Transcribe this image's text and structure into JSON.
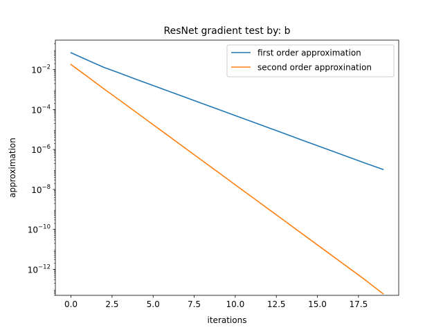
{
  "chart_data": {
    "type": "line",
    "title": "ResNet gradient test by: b",
    "xlabel": "iterations",
    "ylabel": "approximation",
    "yscale": "log",
    "xlim": [
      -0.95,
      19.95
    ],
    "ylim": [
      5e-14,
      0.3
    ],
    "xticks": [
      0.0,
      2.5,
      5.0,
      7.5,
      10.0,
      12.5,
      15.0,
      17.5
    ],
    "xtick_labels": [
      "0.0",
      "2.5",
      "5.0",
      "7.5",
      "10.0",
      "12.5",
      "15.0",
      "17.5"
    ],
    "yticks": [
      1e-12,
      1e-10,
      1e-08,
      1e-06,
      0.0001,
      0.01
    ],
    "ytick_bases": [
      "10",
      "10",
      "10",
      "10",
      "10",
      "10"
    ],
    "ytick_exponents": [
      "−12",
      "−10",
      "−8",
      "−6",
      "−4",
      "−2"
    ],
    "grid": false,
    "legend_position": "top-right",
    "x": [
      0,
      1,
      2,
      3,
      4,
      5,
      6,
      7,
      8,
      9,
      10,
      11,
      12,
      13,
      14,
      15,
      16,
      17,
      18,
      19
    ],
    "series": [
      {
        "name": "first order approximation",
        "color": "#1f77b4",
        "values": [
          0.07,
          0.03,
          0.013,
          0.0065,
          0.0032,
          0.0016,
          0.0008,
          0.0004,
          0.0002,
          0.0001,
          5e-05,
          2.5e-05,
          1.25e-05,
          6.25e-06,
          3.1e-06,
          1.55e-06,
          7.8e-07,
          3.9e-07,
          1.95e-07,
          1e-07
        ]
      },
      {
        "name": "second order approxination",
        "color": "#ff7f0e",
        "values": [
          0.018,
          0.0045,
          0.0011,
          0.00028,
          7e-05,
          1.75e-05,
          4.4e-06,
          1.1e-06,
          2.75e-07,
          6.9e-08,
          1.7e-08,
          4.3e-09,
          1.07e-09,
          2.7e-10,
          6.7e-11,
          1.68e-11,
          4.2e-12,
          1.05e-12,
          2.6e-13,
          6e-14
        ]
      }
    ]
  }
}
